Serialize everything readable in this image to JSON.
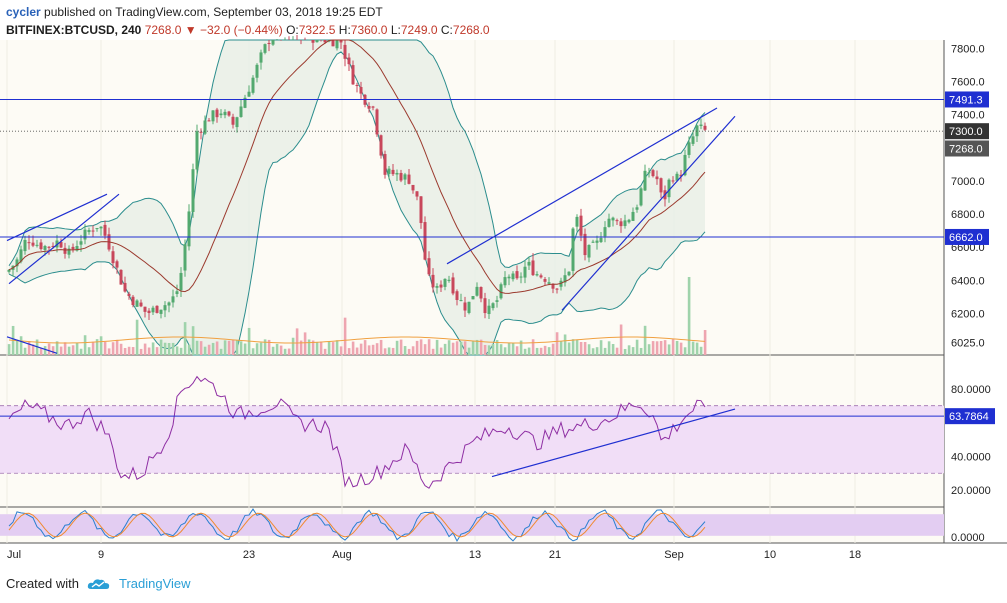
{
  "header": {
    "user": "cycler",
    "published": "published on TradingView.com, September 03, 2018 19:25 EDT",
    "symbol": "BITFINEX:BTCUSD, 240",
    "last": "7268.0",
    "change": "−32.0 (−0.44%)",
    "o_label": "O:",
    "o_val": "7322.5",
    "h_label": "H:",
    "h_val": "7360.0",
    "l_label": "L:",
    "l_val": "7249.0",
    "c_label": "C:",
    "c_val": "7268.0"
  },
  "footer": {
    "created_with": "Created with",
    "brand": "TradingView"
  },
  "colors": {
    "up": "#53a96f",
    "down": "#c8475b",
    "bb": "#2b8d8d",
    "ma": "#9b3a2e",
    "trend": "#1f2fd1",
    "rsi": "#8e2ea3",
    "rsi_band": "#f1def7",
    "stoch_band": "#e3cdf2"
  },
  "chart_data": [
    {
      "type": "candlestick",
      "title": "BITFINEX:BTCUSD, 240",
      "x_ticks": [
        "Jul",
        "9",
        "23",
        "Aug",
        "13",
        "21",
        "Sep",
        "10",
        "18"
      ],
      "y_ticks": [
        "7800.0",
        "7600.0",
        "7400.0",
        "7000.0",
        "6800.0",
        "6600.0",
        "6400.0",
        "6200.0",
        "6025.0"
      ],
      "ylim": [
        5950,
        7850
      ],
      "price_tags": [
        "7491.3",
        "7300.0",
        "7268.0",
        "6662.0"
      ],
      "horizontal_lines": [
        7491.3,
        6662.0,
        7300.0
      ],
      "indicators": [
        "Bollinger Bands",
        "Moving Average",
        "Volume"
      ],
      "close_path": [
        {
          "t": 0,
          "c": 6450
        },
        {
          "t": 10,
          "c": 6520
        },
        {
          "t": 20,
          "c": 6660
        },
        {
          "t": 30,
          "c": 6620
        },
        {
          "t": 40,
          "c": 6600
        },
        {
          "t": 52,
          "c": 6640
        },
        {
          "t": 62,
          "c": 6560
        },
        {
          "t": 72,
          "c": 6640
        },
        {
          "t": 82,
          "c": 6700
        },
        {
          "t": 92,
          "c": 6740
        },
        {
          "t": 100,
          "c": 6650
        },
        {
          "t": 108,
          "c": 6500
        },
        {
          "t": 118,
          "c": 6330
        },
        {
          "t": 128,
          "c": 6270
        },
        {
          "t": 140,
          "c": 6200
        },
        {
          "t": 152,
          "c": 6240
        },
        {
          "t": 164,
          "c": 6270
        },
        {
          "t": 172,
          "c": 6360
        },
        {
          "t": 180,
          "c": 6700
        },
        {
          "t": 190,
          "c": 7300
        },
        {
          "t": 202,
          "c": 7380
        },
        {
          "t": 214,
          "c": 7420
        },
        {
          "t": 226,
          "c": 7340
        },
        {
          "t": 236,
          "c": 7480
        },
        {
          "t": 246,
          "c": 7620
        },
        {
          "t": 256,
          "c": 7780
        },
        {
          "t": 266,
          "c": 7900
        },
        {
          "t": 334,
          "c": 7840
        },
        {
          "t": 344,
          "c": 7640
        },
        {
          "t": 354,
          "c": 7520
        },
        {
          "t": 366,
          "c": 7440
        },
        {
          "t": 378,
          "c": 7050
        },
        {
          "t": 390,
          "c": 7040
        },
        {
          "t": 402,
          "c": 7010
        },
        {
          "t": 412,
          "c": 6860
        },
        {
          "t": 420,
          "c": 6420
        },
        {
          "t": 430,
          "c": 6340
        },
        {
          "t": 440,
          "c": 6440
        },
        {
          "t": 450,
          "c": 6300
        },
        {
          "t": 460,
          "c": 6230
        },
        {
          "t": 470,
          "c": 6380
        },
        {
          "t": 480,
          "c": 6200
        },
        {
          "t": 490,
          "c": 6280
        },
        {
          "t": 500,
          "c": 6440
        },
        {
          "t": 510,
          "c": 6390
        },
        {
          "t": 520,
          "c": 6500
        },
        {
          "t": 530,
          "c": 6440
        },
        {
          "t": 540,
          "c": 6410
        },
        {
          "t": 552,
          "c": 6350
        },
        {
          "t": 562,
          "c": 6470
        },
        {
          "t": 568,
          "c": 6820
        },
        {
          "t": 578,
          "c": 6560
        },
        {
          "t": 590,
          "c": 6620
        },
        {
          "t": 600,
          "c": 6780
        },
        {
          "t": 610,
          "c": 6750
        },
        {
          "t": 620,
          "c": 6760
        },
        {
          "t": 630,
          "c": 6860
        },
        {
          "t": 640,
          "c": 7070
        },
        {
          "t": 650,
          "c": 7010
        },
        {
          "t": 656,
          "c": 6860
        },
        {
          "t": 664,
          "c": 7040
        },
        {
          "t": 672,
          "c": 7010
        },
        {
          "t": 680,
          "c": 7180
        },
        {
          "t": 690,
          "c": 7320
        },
        {
          "t": 698,
          "c": 7300
        },
        {
          "t": 703,
          "c": 7268
        }
      ]
    },
    {
      "type": "line",
      "title": "RSI",
      "y_ticks": [
        "80.0000",
        "40.0000",
        "20.0000"
      ],
      "ylim": [
        10,
        100
      ],
      "band": [
        30,
        70
      ],
      "value_tag": "63.7864",
      "horizontal_lines": [
        63.7864
      ],
      "series_path": [
        {
          "t": 0,
          "v": 60
        },
        {
          "t": 20,
          "v": 70
        },
        {
          "t": 40,
          "v": 64
        },
        {
          "t": 60,
          "v": 58
        },
        {
          "t": 80,
          "v": 66
        },
        {
          "t": 100,
          "v": 54
        },
        {
          "t": 115,
          "v": 28
        },
        {
          "t": 135,
          "v": 30
        },
        {
          "t": 160,
          "v": 52
        },
        {
          "t": 175,
          "v": 80
        },
        {
          "t": 190,
          "v": 88
        },
        {
          "t": 210,
          "v": 80
        },
        {
          "t": 230,
          "v": 64
        },
        {
          "t": 250,
          "v": 68
        },
        {
          "t": 270,
          "v": 72
        },
        {
          "t": 290,
          "v": 60
        },
        {
          "t": 320,
          "v": 58
        },
        {
          "t": 340,
          "v": 24
        },
        {
          "t": 370,
          "v": 30
        },
        {
          "t": 400,
          "v": 44
        },
        {
          "t": 420,
          "v": 22
        },
        {
          "t": 445,
          "v": 36
        },
        {
          "t": 470,
          "v": 50
        },
        {
          "t": 500,
          "v": 58
        },
        {
          "t": 530,
          "v": 48
        },
        {
          "t": 555,
          "v": 56
        },
        {
          "t": 575,
          "v": 58
        },
        {
          "t": 600,
          "v": 62
        },
        {
          "t": 630,
          "v": 72
        },
        {
          "t": 645,
          "v": 66
        },
        {
          "t": 655,
          "v": 48
        },
        {
          "t": 675,
          "v": 62
        },
        {
          "t": 690,
          "v": 70
        },
        {
          "t": 703,
          "v": 63.8
        }
      ]
    },
    {
      "type": "line",
      "title": "Stochastic",
      "y_ticks": [
        "0.0000"
      ],
      "ylim": [
        0,
        100
      ],
      "band": [
        20,
        80
      ]
    }
  ]
}
